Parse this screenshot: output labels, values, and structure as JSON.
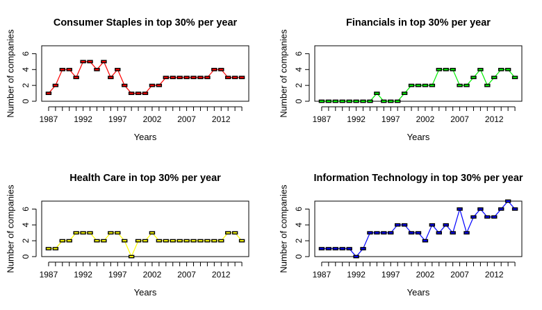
{
  "chart_data": [
    {
      "type": "line",
      "title": "Consumer Staples in top 30% per year",
      "xlabel": "Years",
      "ylabel": "Number of companies",
      "x": [
        1987,
        1988,
        1989,
        1990,
        1991,
        1992,
        1993,
        1994,
        1995,
        1996,
        1997,
        1998,
        1999,
        2000,
        2001,
        2002,
        2003,
        2004,
        2005,
        2006,
        2007,
        2008,
        2009,
        2010,
        2011,
        2012,
        2013,
        2014,
        2015
      ],
      "series": [
        {
          "values": [
            1,
            2,
            4,
            4,
            3,
            5,
            5,
            4,
            5,
            3,
            4,
            2,
            1,
            1,
            1,
            2,
            2,
            3,
            3,
            3,
            3,
            3,
            3,
            3,
            4,
            4,
            3,
            3,
            3
          ],
          "color": "#ff0000"
        }
      ],
      "xticks": [
        1987,
        1992,
        1997,
        2002,
        2007,
        2012
      ],
      "yticks": [
        0,
        2,
        4,
        6
      ],
      "ylim": [
        0,
        7
      ],
      "xlim": [
        1986,
        2016
      ],
      "marker": "dash"
    },
    {
      "type": "line",
      "title": "Financials in top 30% per year",
      "xlabel": "Years",
      "ylabel": "Number of companies",
      "x": [
        1987,
        1988,
        1989,
        1990,
        1991,
        1992,
        1993,
        1994,
        1995,
        1996,
        1997,
        1998,
        1999,
        2000,
        2001,
        2002,
        2003,
        2004,
        2005,
        2006,
        2007,
        2008,
        2009,
        2010,
        2011,
        2012,
        2013,
        2014,
        2015
      ],
      "series": [
        {
          "values": [
            0,
            0,
            0,
            0,
            0,
            0,
            0,
            0,
            1,
            0,
            0,
            0,
            1,
            2,
            2,
            2,
            2,
            4,
            4,
            4,
            2,
            2,
            3,
            4,
            2,
            3,
            4,
            4,
            3
          ],
          "color": "#00ee00"
        }
      ],
      "xticks": [
        1987,
        1992,
        1997,
        2002,
        2007,
        2012
      ],
      "yticks": [
        0,
        2,
        4,
        6
      ],
      "ylim": [
        0,
        7
      ],
      "xlim": [
        1986,
        2016
      ],
      "marker": "dash"
    },
    {
      "type": "line",
      "title": "Health Care in top 30% per year",
      "xlabel": "Years",
      "ylabel": "Number of companies",
      "x": [
        1987,
        1988,
        1989,
        1990,
        1991,
        1992,
        1993,
        1994,
        1995,
        1996,
        1997,
        1998,
        1999,
        2000,
        2001,
        2002,
        2003,
        2004,
        2005,
        2006,
        2007,
        2008,
        2009,
        2010,
        2011,
        2012,
        2013,
        2014,
        2015
      ],
      "series": [
        {
          "values": [
            1,
            1,
            2,
            2,
            3,
            3,
            3,
            2,
            2,
            3,
            3,
            2,
            0,
            2,
            2,
            3,
            2,
            2,
            2,
            2,
            2,
            2,
            2,
            2,
            2,
            2,
            3,
            3,
            2
          ],
          "color": "#ffff00"
        }
      ],
      "xticks": [
        1987,
        1992,
        1997,
        2002,
        2007,
        2012
      ],
      "yticks": [
        0,
        2,
        4,
        6
      ],
      "ylim": [
        0,
        7
      ],
      "xlim": [
        1986,
        2016
      ],
      "marker": "dash"
    },
    {
      "type": "line",
      "title": "Information Technology in top 30% per year",
      "xlabel": "Years",
      "ylabel": "Number of companies",
      "x": [
        1987,
        1988,
        1989,
        1990,
        1991,
        1992,
        1993,
        1994,
        1995,
        1996,
        1997,
        1998,
        1999,
        2000,
        2001,
        2002,
        2003,
        2004,
        2005,
        2006,
        2007,
        2008,
        2009,
        2010,
        2011,
        2012,
        2013,
        2014,
        2015
      ],
      "series": [
        {
          "values": [
            1,
            1,
            1,
            1,
            1,
            0,
            1,
            3,
            3,
            3,
            3,
            4,
            4,
            3,
            3,
            2,
            4,
            3,
            4,
            3,
            6,
            3,
            5,
            6,
            5,
            5,
            6,
            7,
            6
          ],
          "color": "#0000ff"
        }
      ],
      "xticks": [
        1987,
        1992,
        1997,
        2002,
        2007,
        2012
      ],
      "yticks": [
        0,
        2,
        4,
        6
      ],
      "ylim": [
        0,
        7
      ],
      "xlim": [
        1986,
        2016
      ],
      "marker": "dash"
    }
  ]
}
